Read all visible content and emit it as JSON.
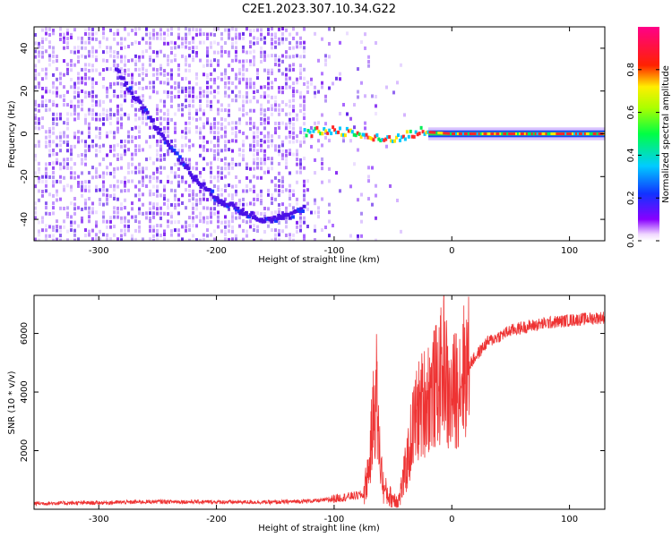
{
  "title": "C2E1.2023.307.10.34.G22",
  "chart_data": [
    {
      "type": "heatmap",
      "xlabel": "Height of straight line (km)",
      "ylabel": "Frequency (Hz)",
      "xlim": [
        -355,
        130
      ],
      "ylim": [
        -50,
        50
      ],
      "x_ticks": [
        -300,
        -200,
        -100,
        0,
        100
      ],
      "x_tick_labels": [
        "-300",
        "-200",
        "-100",
        "0",
        "100"
      ],
      "y_ticks": [
        -40,
        -20,
        0,
        20,
        40
      ],
      "y_tick_labels": [
        "-40",
        "-20",
        "0",
        "20",
        "40"
      ],
      "colorbar": {
        "label": "Normalized spectral amplitude",
        "range": [
          0,
          1
        ],
        "ticks": [
          0.0,
          0.2,
          0.4,
          0.6,
          0.8
        ],
        "tick_labels": [
          "0.0",
          "0.2",
          "0.4",
          "0.6",
          "0.8"
        ],
        "colormap": "rainbow (white-violet-blue-cyan-green-yellow-red-magenta)"
      },
      "features": [
        {
          "name": "diagonal ridge",
          "points": [
            [
              -285,
              30
            ],
            [
              -260,
              10
            ],
            [
              -240,
              -5
            ],
            [
              -220,
              -20
            ],
            [
              -200,
              -30
            ],
            [
              -180,
              -36
            ],
            [
              -160,
              -40
            ],
            [
              -140,
              -39
            ],
            [
              -125,
              -35
            ]
          ]
        },
        {
          "name": "central line",
          "points": [
            [
              -125,
              0
            ],
            [
              -100,
              2
            ],
            [
              -80,
              0
            ],
            [
              -60,
              -3
            ],
            [
              -40,
              -1
            ],
            [
              -25,
              1
            ],
            [
              0,
              0
            ],
            [
              130,
              0
            ]
          ]
        }
      ],
      "grid": false
    },
    {
      "type": "line",
      "xlabel": "Height of straight line (km)",
      "ylabel": "SNR (10 * v/v)",
      "xlim": [
        -355,
        130
      ],
      "ylim": [
        0,
        7300
      ],
      "x_ticks": [
        -300,
        -200,
        -100,
        0,
        100
      ],
      "x_tick_labels": [
        "-300",
        "-200",
        "-100",
        "0",
        "100"
      ],
      "y_ticks": [
        2000,
        4000,
        6000
      ],
      "y_tick_labels": [
        "2000",
        "4000",
        "6000"
      ],
      "color": "#ee3333",
      "series": [
        {
          "x": [
            -355,
            -300,
            -250,
            -200,
            -150,
            -110,
            -90,
            -75,
            -70,
            -66,
            -64,
            -62,
            -58,
            -52,
            -45,
            -40,
            -36,
            -34,
            -30,
            -25,
            -20,
            -15,
            -10,
            -6,
            -3,
            0,
            5,
            10,
            20,
            30,
            40,
            50,
            60,
            80,
            100,
            130
          ],
          "y": [
            200,
            220,
            260,
            250,
            240,
            300,
            420,
            500,
            1500,
            3500,
            4000,
            2200,
            700,
            400,
            300,
            1200,
            2000,
            2600,
            3200,
            3600,
            3900,
            4100,
            4400,
            5200,
            3600,
            3800,
            4300,
            4700,
            5200,
            5700,
            5900,
            6100,
            6200,
            6350,
            6450,
            6550
          ]
        }
      ],
      "grid": false
    }
  ]
}
